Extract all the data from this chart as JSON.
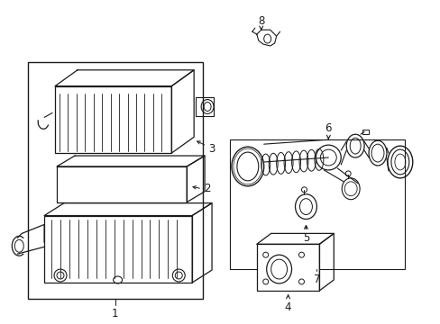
{
  "bg_color": "#ffffff",
  "line_color": "#1a1a1a",
  "fig_width": 4.89,
  "fig_height": 3.6,
  "dpi": 100,
  "font_size": 8.5,
  "bold_font_size": 9
}
